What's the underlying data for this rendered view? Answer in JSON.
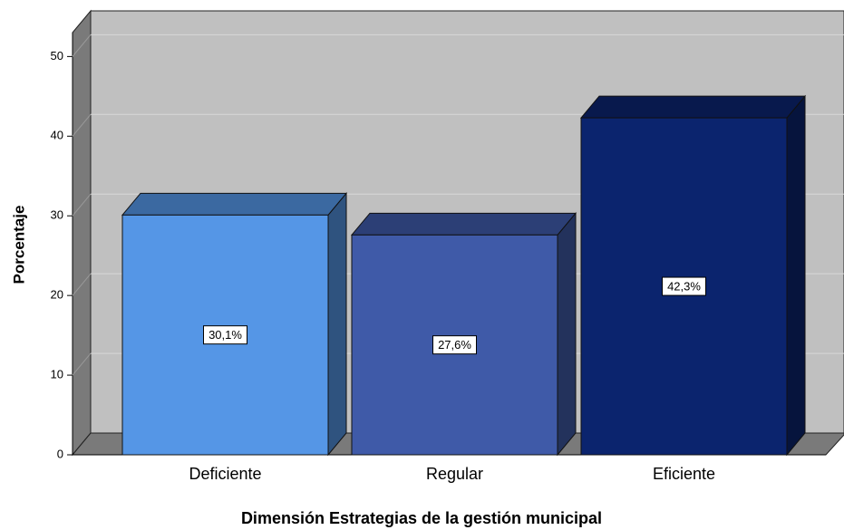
{
  "chart_data": {
    "type": "bar3d",
    "x_label": "Dimensión Estrategias de la gestión municipal",
    "y_label": "Porcentaje",
    "categories": [
      "Deficiente",
      "Regular",
      "Eficiente"
    ],
    "values": [
      30.1,
      27.6,
      42.3
    ],
    "value_labels": [
      "30,1%",
      "27,6%",
      "42,3%"
    ],
    "colors": [
      "#5596e6",
      "#3f5aa8",
      "#0b246e"
    ],
    "ylim": [
      0,
      53
    ],
    "yticks": [
      0,
      10,
      20,
      30,
      40,
      50
    ],
    "grid": true
  }
}
